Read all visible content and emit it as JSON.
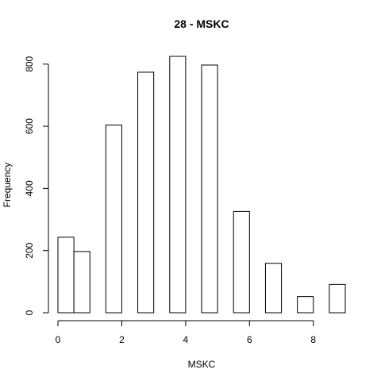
{
  "chart_data": {
    "type": "bar",
    "title": "28 - MSKC",
    "xlabel": "MSKC",
    "ylabel": "Frequency",
    "bin_width": 0.5,
    "bins": [
      {
        "start": 0.0,
        "end": 0.5,
        "value": 243
      },
      {
        "start": 0.5,
        "end": 1.0,
        "value": 197
      },
      {
        "start": 1.0,
        "end": 1.5,
        "value": 0
      },
      {
        "start": 1.5,
        "end": 2.0,
        "value": 604
      },
      {
        "start": 2.0,
        "end": 2.5,
        "value": 0
      },
      {
        "start": 2.5,
        "end": 3.0,
        "value": 774
      },
      {
        "start": 3.0,
        "end": 3.5,
        "value": 0
      },
      {
        "start": 3.5,
        "end": 4.0,
        "value": 825
      },
      {
        "start": 4.0,
        "end": 4.5,
        "value": 0
      },
      {
        "start": 4.5,
        "end": 5.0,
        "value": 797
      },
      {
        "start": 5.0,
        "end": 5.5,
        "value": 0
      },
      {
        "start": 5.5,
        "end": 6.0,
        "value": 326
      },
      {
        "start": 6.0,
        "end": 6.5,
        "value": 0
      },
      {
        "start": 6.5,
        "end": 7.0,
        "value": 159
      },
      {
        "start": 7.0,
        "end": 7.5,
        "value": 0
      },
      {
        "start": 7.5,
        "end": 8.0,
        "value": 52
      },
      {
        "start": 8.0,
        "end": 8.5,
        "value": 0
      },
      {
        "start": 8.5,
        "end": 9.0,
        "value": 91
      }
    ],
    "xlim": [
      0,
      9
    ],
    "ylim": [
      0,
      825
    ],
    "x_ticks": [
      0,
      2,
      4,
      6,
      8
    ],
    "y_ticks": [
      0,
      200,
      400,
      600,
      800
    ],
    "grid": false,
    "legend": "none",
    "colors": {
      "bar_fill": "#ffffff",
      "bar_stroke": "#000000",
      "axis": "#000000",
      "background": "#ffffff"
    }
  }
}
